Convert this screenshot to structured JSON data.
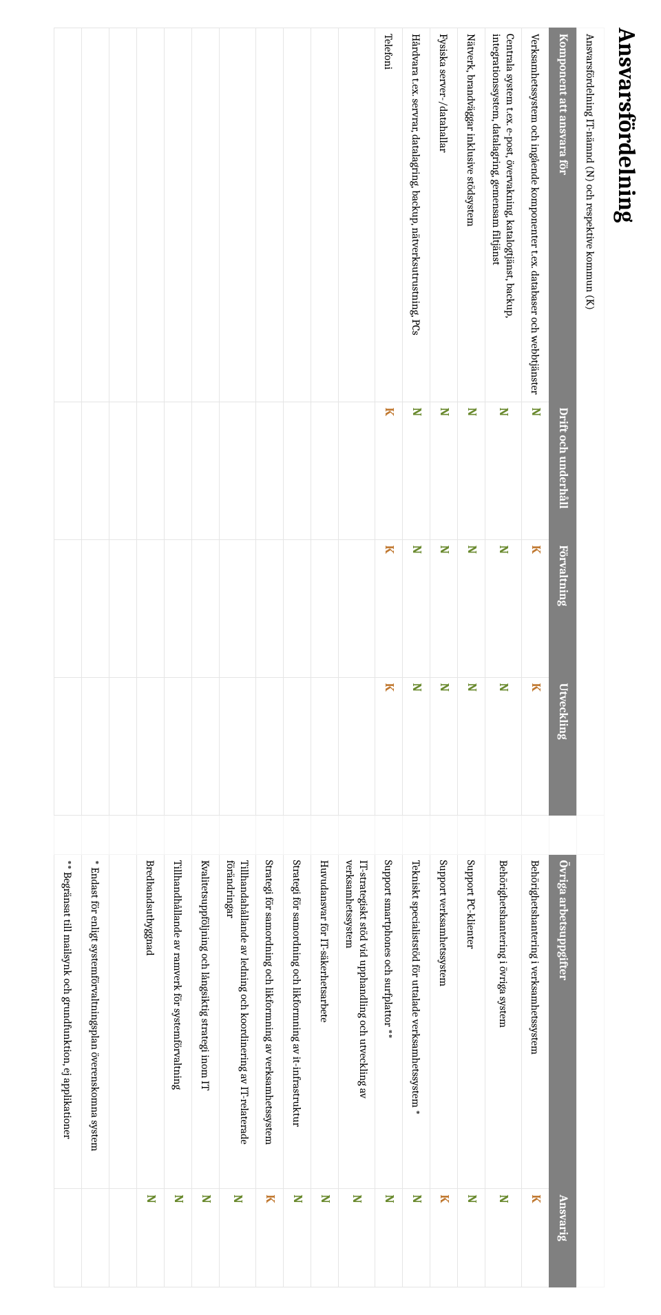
{
  "title": "Ansvarsfördelning",
  "caption": "Ansvarsfördelning IT-nämnd (N) och respektive kommun (K)",
  "colors": {
    "n_color": "#6a8a2f",
    "k_color": "#c07830",
    "header_bg": "#808080",
    "header_fg": "#ffffff",
    "border": "#e5e5e5"
  },
  "headers_left": {
    "component": "Komponent att ansvara för",
    "drift": "Drift och underhåll",
    "forvaltning": "Förvaltning",
    "utveckling": "Utveckling"
  },
  "headers_right": {
    "task": "Övriga arbetsuppgifter",
    "ansvarig": "Ansvarig"
  },
  "rows": [
    {
      "component": "Verksamhetssystem och ingående komponenter t.ex. databaser och webbtjänster",
      "drift": "N",
      "forvaltning": "K",
      "utveckling": "K",
      "task": "Behörighetshantering i verksamhetssystem",
      "ansvarig": "K"
    },
    {
      "component": "Centrala system t.ex. e-post, övervakning, katalogtjänst, backup, integrationssystem, datalagring, gemensam filtjänst",
      "drift": "N",
      "forvaltning": "N",
      "utveckling": "N",
      "task": "Behörighetshantering i övriga system",
      "ansvarig": "N"
    },
    {
      "component": "Nätverk, brandväggar inklusive stödsystem",
      "drift": "N",
      "forvaltning": "N",
      "utveckling": "N",
      "task": "Support PC-klienter",
      "ansvarig": "N"
    },
    {
      "component": "Fysiska server-/datahallar",
      "drift": "N",
      "forvaltning": "N",
      "utveckling": "N",
      "task": "Support verksamhetssystem",
      "ansvarig": "K"
    },
    {
      "component": "Hårdvara t.ex. servrar, datalagring, backup, nätverksutrustning, PCs",
      "drift": "N",
      "forvaltning": "N",
      "utveckling": "N",
      "task": "Tekniskt specialiststöd för uttalade verksamhetssystem *",
      "ansvarig": "N"
    },
    {
      "component": "Telefoni",
      "drift": "K",
      "forvaltning": "K",
      "utveckling": "K",
      "task": "Support smartphones och surfplattor **",
      "ansvarig": "N"
    },
    {
      "component": "",
      "drift": "",
      "forvaltning": "",
      "utveckling": "",
      "task": "IT-strategiskt stöd vid upphandling och utveckling av verksamhetssystem",
      "ansvarig": "N"
    },
    {
      "component": "",
      "drift": "",
      "forvaltning": "",
      "utveckling": "",
      "task": "Huvudansvar för IT-säkerhetsarbete",
      "ansvarig": "N"
    },
    {
      "component": "",
      "drift": "",
      "forvaltning": "",
      "utveckling": "",
      "task": "Strategi för samordning och likformning av it-infrastruktur",
      "ansvarig": "N"
    },
    {
      "component": "",
      "drift": "",
      "forvaltning": "",
      "utveckling": "",
      "task": "Strategi för samordning och likformning av verksamhetssystem",
      "ansvarig": "K"
    },
    {
      "component": "",
      "drift": "",
      "forvaltning": "",
      "utveckling": "",
      "task": "Tillhandahållande av ledning och koordinering av IT-relaterade förändringar",
      "ansvarig": "N"
    },
    {
      "component": "",
      "drift": "",
      "forvaltning": "",
      "utveckling": "",
      "task": "Kvalitetsuppföljning och långsiktig strategi inom IT",
      "ansvarig": "N"
    },
    {
      "component": "",
      "drift": "",
      "forvaltning": "",
      "utveckling": "",
      "task": "Tillhandhållande av ramverk för systemförvaltning",
      "ansvarig": "N"
    },
    {
      "component": "",
      "drift": "",
      "forvaltning": "",
      "utveckling": "",
      "task": "Bredbandsutbyggnad",
      "ansvarig": "N"
    },
    {
      "component": "",
      "drift": "",
      "forvaltning": "",
      "utveckling": "",
      "task": "",
      "ansvarig": ""
    },
    {
      "component": "",
      "drift": "",
      "forvaltning": "",
      "utveckling": "",
      "task": "* Endast för enligt systemförvaltningsplan överenskomna system",
      "ansvarig": "",
      "note": true
    },
    {
      "component": "",
      "drift": "",
      "forvaltning": "",
      "utveckling": "",
      "task": "** Begränsat till mailsynk och grundfunktion, ej applikationer",
      "ansvarig": "",
      "note": true
    }
  ]
}
